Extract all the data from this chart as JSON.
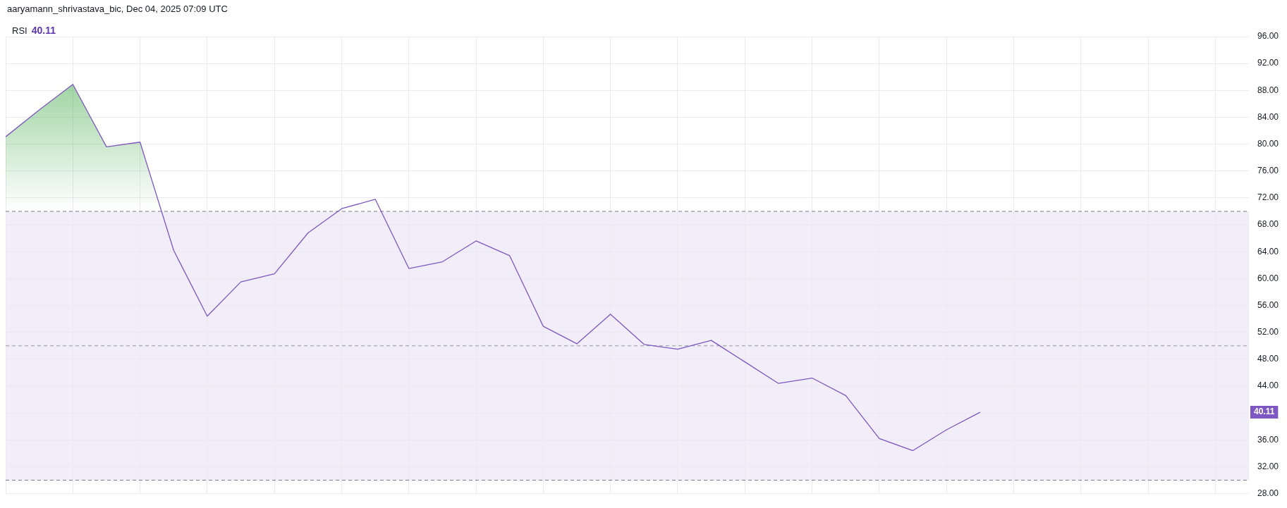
{
  "chart_data": {
    "type": "line",
    "annotations": [
      "aaryamann_shrivastava_bic, Dec 04, 2025 07:09 UTC",
      "40.11",
      {
        "text": "40.11",
        "y": 40.11
      }
    ],
    "categories": [
      null,
      null,
      null,
      null,
      null,
      null,
      null,
      null,
      null,
      null,
      null,
      null,
      null,
      null,
      null,
      null,
      null,
      null,
      null,
      null,
      null,
      null,
      null,
      null,
      null,
      null,
      null,
      null,
      null,
      null,
      null,
      null,
      null,
      null,
      null,
      null,
      null,
      null
    ],
    "series": [
      {
        "name": "RSI",
        "color": "#7e57c2",
        "values": [
          81.1,
          85.1,
          88.9,
          79.6,
          80.3,
          64.2,
          54.4,
          59.5,
          60.7,
          66.8,
          70.4,
          71.8,
          61.5,
          62.5,
          65.6,
          63.4,
          52.9,
          50.3,
          54.7,
          50.2,
          49.5,
          50.8,
          47.6,
          44.4,
          45.2,
          42.6,
          36.2,
          34.4,
          37.5,
          40.11,
          null,
          null,
          null,
          null,
          null,
          null,
          null,
          null
        ]
      }
    ],
    "ylim": [
      28,
      96
    ],
    "yticks": [
      {
        "value": 28,
        "label": "28.00"
      },
      {
        "value": 32,
        "label": "32.00"
      },
      {
        "value": 36,
        "label": "36.00"
      },
      {
        "value": 40,
        "label": null
      },
      {
        "value": 44,
        "label": "44.00"
      },
      {
        "value": 48,
        "label": "48.00"
      },
      {
        "value": 52,
        "label": "52.00"
      },
      {
        "value": 56,
        "label": "56.00"
      },
      {
        "value": 60,
        "label": "60.00"
      },
      {
        "value": 64,
        "label": "64.00"
      },
      {
        "value": 68,
        "label": "68.00"
      },
      {
        "value": 72,
        "label": "72.00"
      },
      {
        "value": 76,
        "label": "76.00"
      },
      {
        "value": 80,
        "label": "80.00"
      },
      {
        "value": 84,
        "label": "84.00"
      },
      {
        "value": 88,
        "label": "88.00"
      },
      {
        "value": 92,
        "label": "92.00"
      },
      {
        "value": 96,
        "label": "96.00"
      }
    ],
    "ref_lines": [
      {
        "axis": "y",
        "value": 70,
        "color": "#787b86",
        "line_style": "dashed"
      },
      {
        "axis": "y",
        "value": 50,
        "color": "#9598a1",
        "line_style": "dashed"
      },
      {
        "axis": "y",
        "value": 30,
        "color": "#787b86",
        "line_style": "dashed"
      }
    ],
    "bands": [
      {
        "axis": "y",
        "from": 30,
        "to": 70,
        "color": "#f1edf9"
      }
    ],
    "grid": true,
    "legend": "top left",
    "line_style": "solid",
    "marker": "none"
  }
}
